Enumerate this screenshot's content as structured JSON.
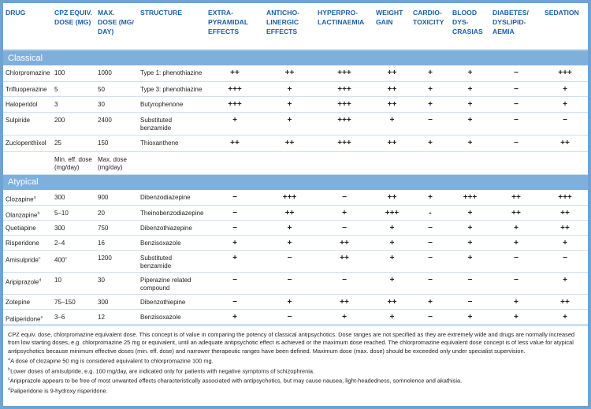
{
  "headers": [
    "DRUG",
    "CPZ EQUIV. DOSE (MG)",
    "MAX. DOSE (MG/ DAY)",
    "STRUCTURE",
    "EXTRA-PYRAMIDAL EFFECTS",
    "ANTICHO-LINERGIC EFFECTS",
    "HYPERPRO-LACTINAEMIA",
    "WEIGHT GAIN",
    "CARDIO-TOXICITY",
    "BLOOD DYS-CRASIAS",
    "DIABETES/ DYSLIPID-AEMIA",
    "SEDATION"
  ],
  "classical": {
    "label": "Classical",
    "rows": [
      {
        "drug": "Chlorpromazine",
        "sup": "",
        "dose": "100",
        "dose_sup": "",
        "max": "1000",
        "structure": "Type 1: phenothiazine",
        "effects": [
          "++",
          "++",
          "+++",
          "++",
          "+",
          "+",
          "−",
          "+++"
        ]
      },
      {
        "drug": "Trifluoperazine",
        "sup": "",
        "dose": "5",
        "dose_sup": "",
        "max": "50",
        "structure": "Type 3: phenothiazine",
        "effects": [
          "+++",
          "+",
          "+++",
          "++",
          "+",
          "+",
          "−",
          "+"
        ]
      },
      {
        "drug": "Haloperidol",
        "sup": "",
        "dose": "3",
        "dose_sup": "",
        "max": "30",
        "structure": "Butyrophenone",
        "effects": [
          "+++",
          "+",
          "+++",
          "++",
          "+",
          "+",
          "−",
          "+"
        ]
      },
      {
        "drug": "Sulpiride",
        "sup": "",
        "dose": "200",
        "dose_sup": "",
        "max": "2400",
        "structure": "Substituted benzamide",
        "effects": [
          "+",
          "+",
          "+++",
          "+",
          "−",
          "+",
          "−",
          "−"
        ]
      },
      {
        "drug": "Zuclopenthixol",
        "sup": "",
        "dose": "25",
        "dose_sup": "",
        "max": "150",
        "structure": "Thioxanthene",
        "effects": [
          "++",
          "++",
          "+++",
          "++",
          "+",
          "+",
          "−",
          "++"
        ]
      }
    ]
  },
  "subheader": {
    "min_eff": "Min. eff. dose (mg/day)",
    "max_dose": "Max. dose (mg/day)"
  },
  "atypical": {
    "label": "Atypical",
    "rows": [
      {
        "drug": "Clozapine",
        "sup": "a",
        "dose": "300",
        "dose_sup": "",
        "max": "900",
        "structure": "Dibenzodiazepine",
        "effects": [
          "−",
          "+++",
          "−",
          "++",
          "+",
          "+++",
          "++",
          "+++"
        ]
      },
      {
        "drug": "Olanzapine",
        "sup": "b",
        "dose": "5–10",
        "dose_sup": "",
        "max": "20",
        "structure": "Theinobenzodiazepine",
        "effects": [
          "−",
          "++",
          "+",
          "+++",
          "-",
          "+",
          "++",
          "++"
        ]
      },
      {
        "drug": "Quetiapine",
        "sup": "",
        "dose": "300",
        "dose_sup": "",
        "max": "750",
        "structure": "Dibenzothiazepine",
        "effects": [
          "−",
          "+",
          "−",
          "+",
          "−",
          "+",
          "+",
          "++"
        ]
      },
      {
        "drug": "Risperidone",
        "sup": "",
        "dose": "2–4",
        "dose_sup": "",
        "max": "16",
        "structure": "Benzisoxazole",
        "effects": [
          "+",
          "+",
          "++",
          "+",
          "−",
          "+",
          "+",
          "+"
        ]
      },
      {
        "drug": "Amisulpride",
        "sup": "c",
        "dose": "400",
        "dose_sup": "c",
        "max": "1200",
        "structure": "Substituted benzamide",
        "effects": [
          "+",
          "−",
          "++",
          "+",
          "−",
          "+",
          "−",
          "−"
        ]
      },
      {
        "drug": "Aripiprazole",
        "sup": "d",
        "dose": "10",
        "dose_sup": "",
        "max": "30",
        "structure": "Piperazine related compound",
        "effects": [
          "−",
          "−",
          "−",
          "+",
          "−",
          "−",
          "−",
          "+"
        ]
      },
      {
        "drug": "Zotepine",
        "sup": "",
        "dose": "75–150",
        "dose_sup": "",
        "max": "300",
        "structure": "Dibenzothiepine",
        "effects": [
          "−",
          "+",
          "++",
          "++",
          "+",
          "−",
          "+",
          "++"
        ]
      },
      {
        "drug": "Paliperidone",
        "sup": "e",
        "dose": "3–6",
        "dose_sup": "",
        "max": "12",
        "structure": "Benzisoxazole",
        "effects": [
          "+",
          "−",
          "+",
          "+",
          "−",
          "+",
          "+",
          "+"
        ]
      }
    ]
  },
  "notes": [
    {
      "sup": "",
      "text": "CPZ equiv. dose, chlorpromazine equivalent dose. This concept is of value in comparing the potency of classical antipsychotics. Dose ranges are not specified as they are extremely wide and drugs are normally increased from low starting doses, e.g. chlorpromazine 25 mg or equivalent, until an adequate antipsychotic effect is achieved or the maximum dose reached. The chlorpromazine equivalent dose concept is of less value for atypical antipsychotics because minimum effective doses (min. eff. dose) and narrower therapeutic ranges have been defined. Maximum dose (max. dose) should be exceeded only under specialist supervision."
    },
    {
      "sup": "a",
      "text": "A dose of clozapine 50 mg is considered equivalent to chlorpromazine 100 mg."
    },
    {
      "sup": "b",
      "text": "Lower doses of amisulpride, e.g. 100 mg/day, are indicated only for patients with negative symptoms of schizophrenia."
    },
    {
      "sup": "c",
      "text": "Aripiprazole appears to be free of most unwanted effects characteristically associated with antipsychotics, but may cause nausea, light-headedness, somnolence and akathisia."
    },
    {
      "sup": "d",
      "text": "Paliperidone is 9-hydroxy risperidone."
    }
  ]
}
